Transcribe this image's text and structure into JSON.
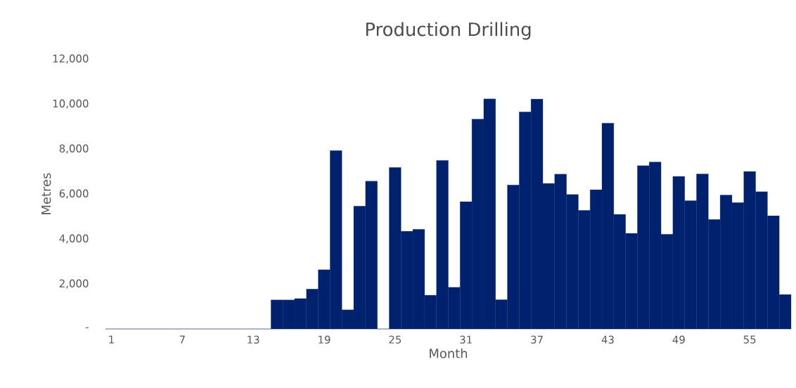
{
  "chart_data": {
    "type": "bar",
    "title": "Production Drilling",
    "xlabel": "Month",
    "ylabel": "Metres",
    "categories": [
      "1",
      null,
      null,
      null,
      null,
      null,
      "7",
      null,
      null,
      null,
      null,
      null,
      "13",
      null,
      null,
      null,
      null,
      null,
      "19",
      null,
      null,
      null,
      null,
      null,
      "25",
      null,
      null,
      null,
      null,
      null,
      "31",
      null,
      null,
      null,
      null,
      null,
      "37",
      null,
      null,
      null,
      null,
      null,
      "43",
      null,
      null,
      null,
      null,
      null,
      "49",
      null,
      null,
      null,
      null,
      null,
      "55",
      null,
      null,
      null
    ],
    "values": [
      0,
      0,
      0,
      0,
      0,
      0,
      0,
      0,
      0,
      0,
      0,
      0,
      0,
      0,
      1290,
      1290,
      1350,
      1770,
      2630,
      7930,
      850,
      5460,
      6570,
      0,
      7180,
      4340,
      4430,
      1500,
      7490,
      1850,
      5660,
      9330,
      10230,
      1300,
      6400,
      9650,
      10220,
      6470,
      6880,
      5980,
      5270,
      6190,
      9150,
      5090,
      4250,
      7260,
      7420,
      4210,
      6780,
      5700,
      6890,
      4870,
      5950,
      5620,
      7000,
      6100,
      5030,
      1530
    ],
    "color": "#00226e",
    "ylim": [
      0,
      12000
    ],
    "yticks": [
      {
        "value": 0,
        "label": "-"
      },
      {
        "value": 2000,
        "label": "2,000"
      },
      {
        "value": 4000,
        "label": "4,000"
      },
      {
        "value": 6000,
        "label": "6,000"
      },
      {
        "value": 8000,
        "label": "8,000"
      },
      {
        "value": 10000,
        "label": "10,000"
      },
      {
        "value": 12000,
        "label": "12,000"
      }
    ]
  }
}
